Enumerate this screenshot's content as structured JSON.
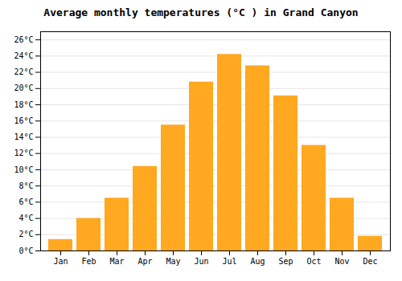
{
  "chart_data": {
    "type": "bar",
    "title": "Average monthly temperatures (°C ) in Grand Canyon",
    "categories": [
      "Jan",
      "Feb",
      "Mar",
      "Apr",
      "May",
      "Jun",
      "Jul",
      "Aug",
      "Sep",
      "Oct",
      "Nov",
      "Dec"
    ],
    "values": [
      1.4,
      4.0,
      6.5,
      10.4,
      15.5,
      20.8,
      24.2,
      22.8,
      19.1,
      13.0,
      6.5,
      1.8
    ],
    "color": "#FFA820",
    "ylim": [
      0,
      27
    ],
    "yticks": [
      {
        "value": 0,
        "label": "0°C"
      },
      {
        "value": 2,
        "label": "2°C"
      },
      {
        "value": 4,
        "label": "4°C"
      },
      {
        "value": 6,
        "label": "6°C"
      },
      {
        "value": 8,
        "label": "8°C"
      },
      {
        "value": 10,
        "label": "10°C"
      },
      {
        "value": 12,
        "label": "12°C"
      },
      {
        "value": 14,
        "label": "14°C"
      },
      {
        "value": 16,
        "label": "16°C"
      },
      {
        "value": 18,
        "label": "18°C"
      },
      {
        "value": 20,
        "label": "20°C"
      },
      {
        "value": 22,
        "label": "22°C"
      },
      {
        "value": 24,
        "label": "24°C"
      },
      {
        "value": 26,
        "label": "26°C"
      }
    ],
    "grid": true
  }
}
